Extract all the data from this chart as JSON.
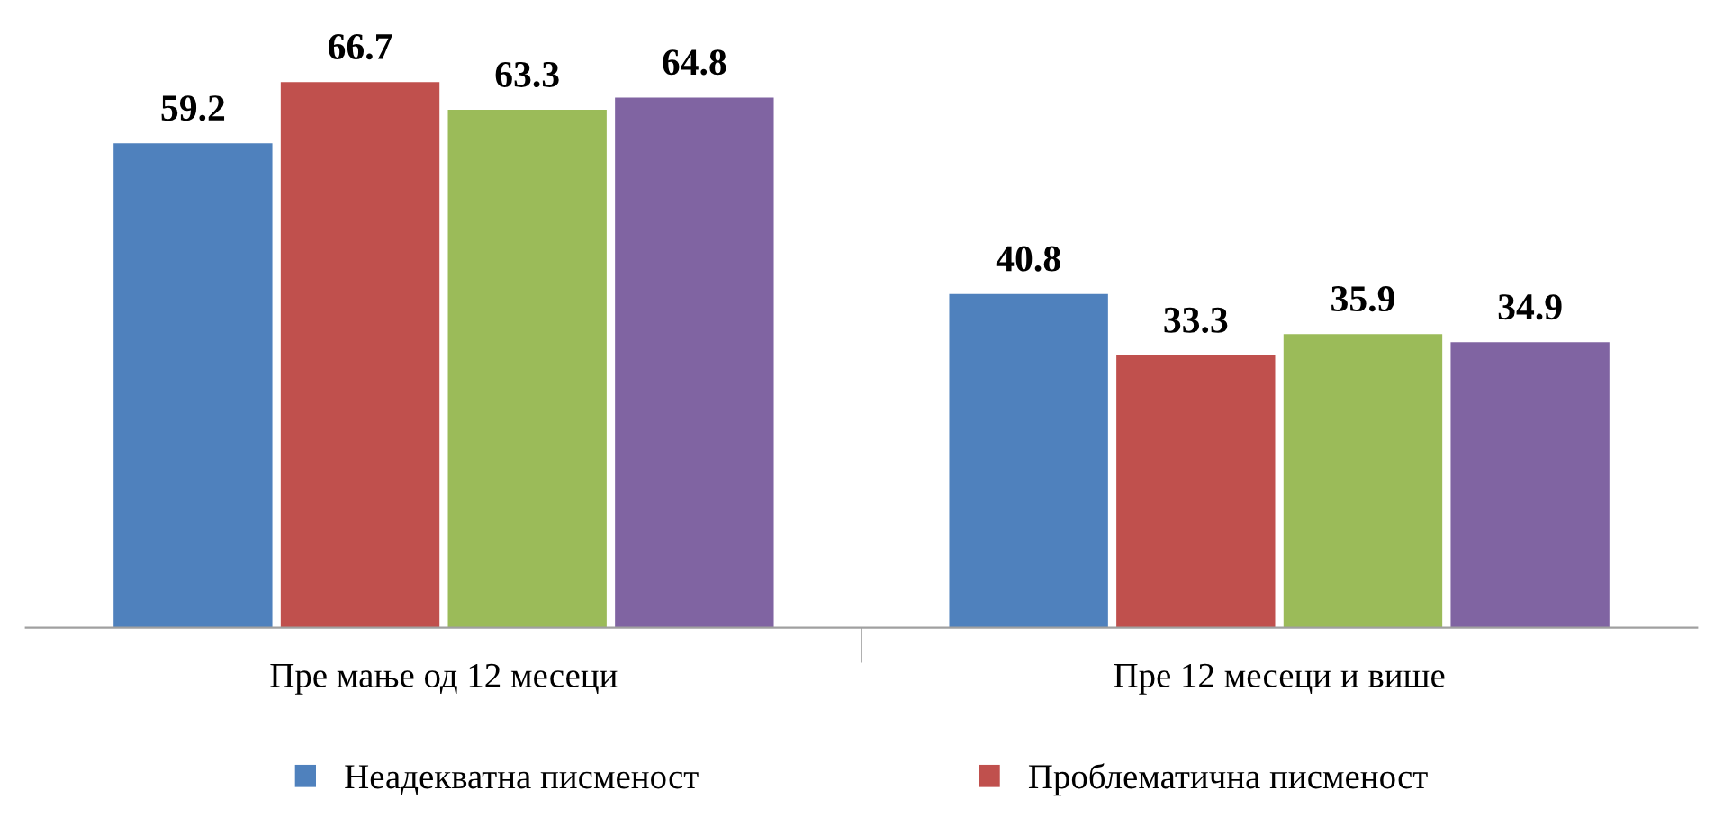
{
  "chart_data": {
    "type": "bar",
    "categories": [
      "Пре мање од 12 месеци",
      "Пре 12 месеци и више"
    ],
    "series": [
      {
        "name": "Неадекватна писменост",
        "color": "#4f81bd",
        "values": [
          59.2,
          40.8
        ]
      },
      {
        "name": "Проблематична писменост",
        "color": "#c0504d",
        "values": [
          66.7,
          33.3
        ]
      },
      {
        "color": "#9bbb59",
        "values": [
          63.3,
          35.9
        ]
      },
      {
        "color": "#8064a2",
        "values": [
          64.8,
          34.9
        ]
      }
    ],
    "data_labels": true,
    "legend": "bottom",
    "grid": false
  }
}
